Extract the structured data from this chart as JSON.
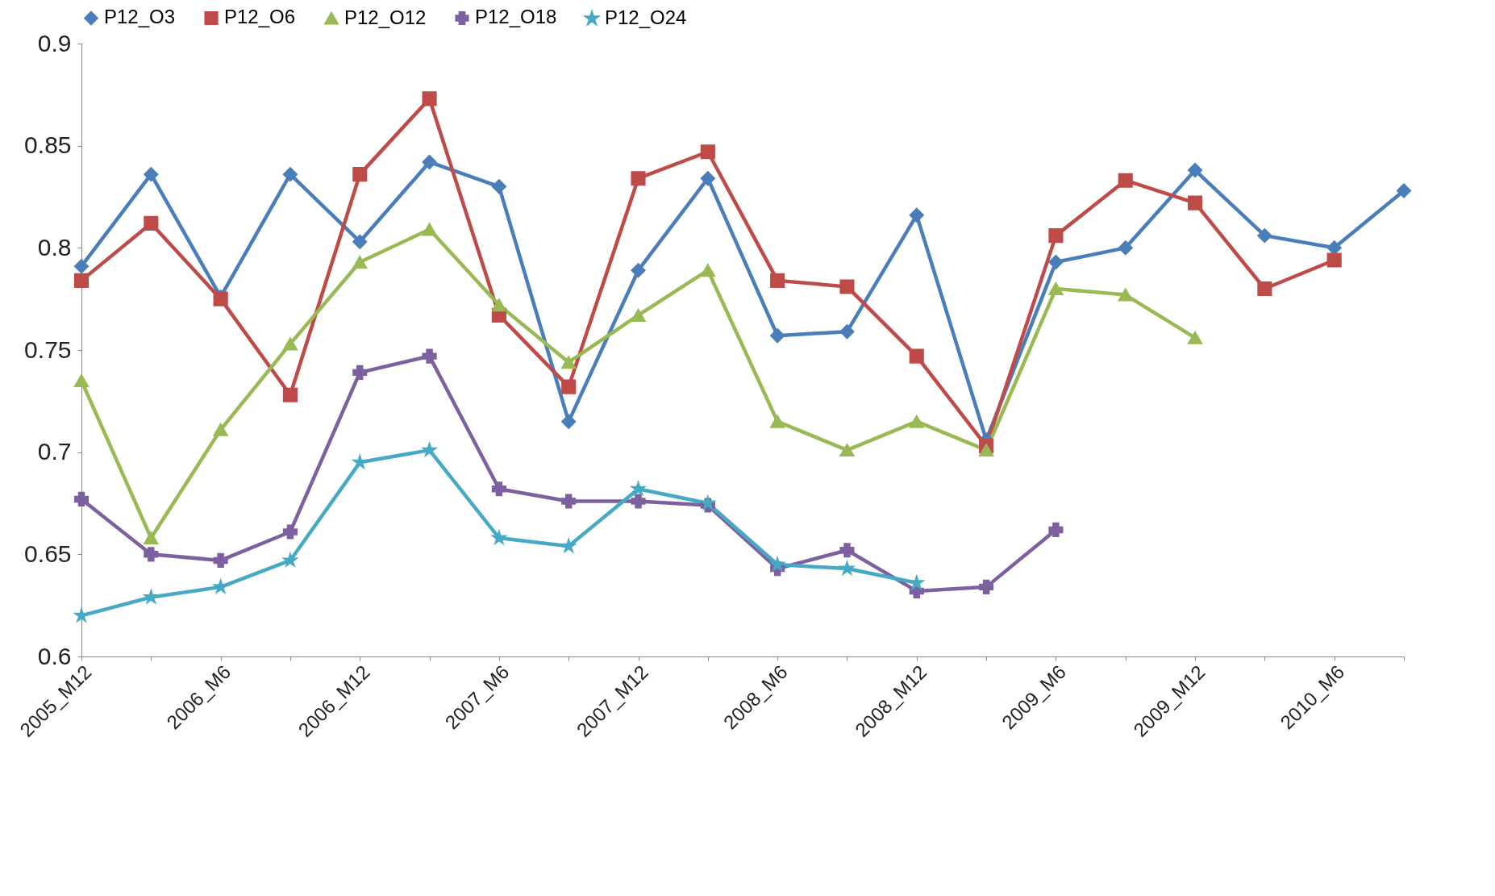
{
  "chart_data": {
    "type": "line",
    "categories": [
      "2005_M12",
      null,
      "2006_M6",
      null,
      "2006_M12",
      null,
      "2007_M6",
      null,
      "2007_M12",
      null,
      "2008_M6",
      null,
      "2008_M12",
      null,
      "2009_M6",
      null,
      "2009_M12",
      null,
      "2010_M6",
      null
    ],
    "ylim": [
      0.6,
      0.9
    ],
    "yticks": [
      0.6,
      0.65,
      0.7,
      0.75,
      0.8,
      0.85,
      0.9
    ],
    "grid": false,
    "legend": "top",
    "series": [
      {
        "name": "P12_O3",
        "color": "#4a7ebb",
        "marker": "diamond",
        "values": [
          0.791,
          0.836,
          0.776,
          0.836,
          0.803,
          0.842,
          0.83,
          0.715,
          0.789,
          0.834,
          0.757,
          0.759,
          0.816,
          0.706,
          0.793,
          0.8,
          0.838,
          0.806,
          0.8,
          0.828
        ]
      },
      {
        "name": "P12_O6",
        "color": "#be4b48",
        "marker": "square",
        "values": [
          0.784,
          0.812,
          0.775,
          0.728,
          0.836,
          0.873,
          0.767,
          0.732,
          0.834,
          0.847,
          0.784,
          0.781,
          0.747,
          0.703,
          0.806,
          0.833,
          0.822,
          0.78,
          0.794,
          null
        ]
      },
      {
        "name": "P12_O12",
        "color": "#98b954",
        "marker": "triangle",
        "values": [
          0.735,
          0.658,
          0.711,
          0.753,
          0.793,
          0.809,
          0.772,
          0.744,
          0.767,
          0.789,
          0.715,
          0.701,
          0.715,
          0.701,
          0.78,
          0.777,
          0.756,
          null,
          null,
          null
        ]
      },
      {
        "name": "P12_O18",
        "color": "#7d60a0",
        "marker": "cross",
        "values": [
          0.677,
          0.65,
          0.647,
          0.661,
          0.739,
          0.747,
          0.682,
          0.676,
          0.676,
          0.674,
          0.643,
          0.652,
          0.632,
          0.634,
          0.662,
          null,
          null,
          null,
          null,
          null
        ]
      },
      {
        "name": "P12_O24",
        "color": "#46aac5",
        "marker": "star",
        "values": [
          0.62,
          0.629,
          0.634,
          0.647,
          0.695,
          0.701,
          0.658,
          0.654,
          0.682,
          0.675,
          0.645,
          0.643,
          0.636,
          null,
          null,
          null,
          null,
          null,
          null,
          null
        ]
      }
    ]
  }
}
